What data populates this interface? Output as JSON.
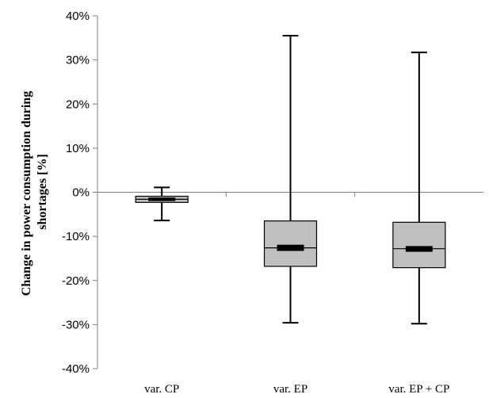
{
  "chart_data": {
    "type": "boxplot",
    "ylabel_lines": [
      "Change in power consumption during",
      "shortages [%]"
    ],
    "ylim": [
      -40,
      40
    ],
    "yticks": [
      40,
      30,
      20,
      10,
      0,
      -10,
      -20,
      -30,
      -40
    ],
    "ytick_labels": [
      "40%",
      "30%",
      "20%",
      "10%",
      "0%",
      "-10%",
      "-20%",
      "-30%",
      "-40%"
    ],
    "grid": false,
    "colors": {
      "box_fill": "#c0c0c0",
      "line": "#000000",
      "axis": "#7f7f7f"
    },
    "categories": [
      "var. CP",
      "var. EP",
      "var. EP + CP"
    ],
    "boxes": [
      {
        "category": "var. CP",
        "min": -6.4,
        "q1": -2.3,
        "median": -1.6,
        "q3": -0.9,
        "max": 1.1,
        "median_band": [
          -2.0,
          -1.2
        ]
      },
      {
        "category": "var. EP",
        "min": -29.6,
        "q1": -16.8,
        "median": -12.6,
        "q3": -6.5,
        "max": 35.5,
        "median_band": [
          -13.3,
          -11.9
        ]
      },
      {
        "category": "var. EP + CP",
        "min": -29.8,
        "q1": -17.1,
        "median": -12.8,
        "q3": -6.8,
        "max": 31.7,
        "median_band": [
          -13.5,
          -12.2
        ]
      }
    ]
  }
}
